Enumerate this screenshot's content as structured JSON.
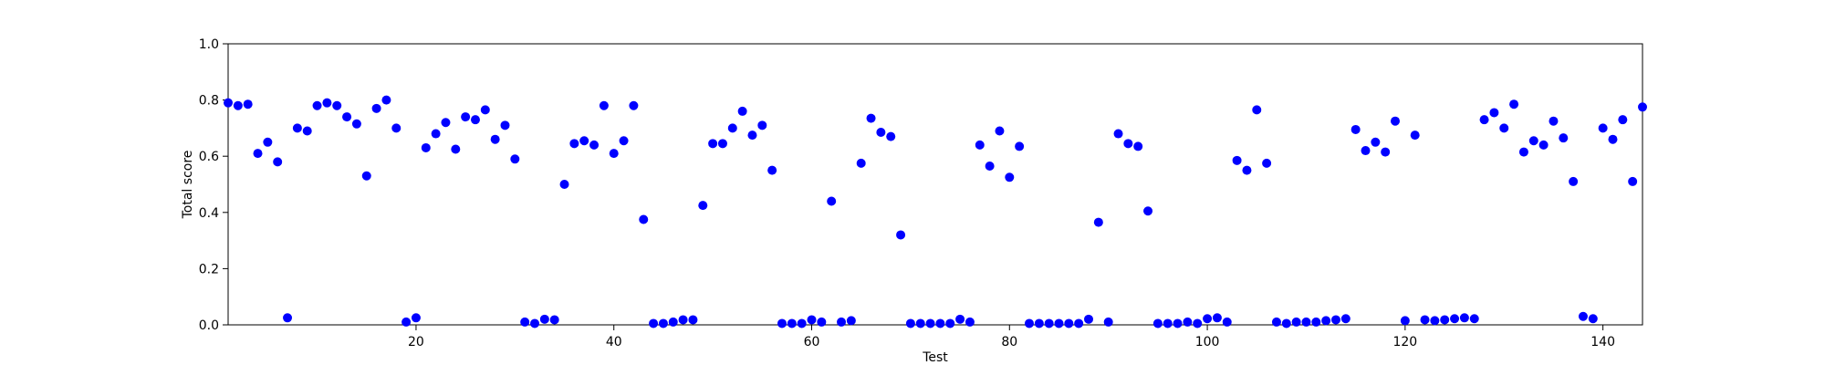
{
  "chart_data": {
    "type": "scatter",
    "title": "",
    "xlabel": "Test",
    "ylabel": "Total score",
    "xlim": [
      1,
      144
    ],
    "ylim": [
      0,
      1
    ],
    "x_ticks": [
      20,
      40,
      60,
      80,
      100,
      120,
      140
    ],
    "y_ticks": [
      0.0,
      0.2,
      0.4,
      0.6,
      0.8,
      1.0
    ],
    "y_tick_labels": [
      "0.0",
      "0.2",
      "0.4",
      "0.6",
      "0.8",
      "1.0"
    ],
    "grid": false,
    "marker_color": "#0000ff",
    "series": [
      {
        "x": [
          1,
          2,
          3,
          4,
          5,
          6,
          7,
          8,
          9,
          10,
          11,
          12,
          13,
          14,
          15,
          16,
          17,
          18,
          19,
          20,
          21,
          22,
          23,
          24,
          25,
          26,
          27,
          28,
          29,
          30,
          31,
          32,
          33,
          34,
          35,
          36,
          37,
          38,
          39,
          40,
          41,
          42,
          43,
          44,
          45,
          46,
          47,
          48,
          49,
          50,
          51,
          52,
          53,
          54,
          55,
          56,
          57,
          58,
          59,
          60,
          61,
          62,
          63,
          64,
          65,
          66,
          67,
          68,
          69,
          70,
          71,
          72,
          73,
          74,
          75,
          76,
          77,
          78,
          79,
          80,
          81,
          82,
          83,
          84,
          85,
          86,
          87,
          88,
          89,
          90,
          91,
          92,
          93,
          94,
          95,
          96,
          97,
          98,
          99,
          100,
          101,
          102,
          103,
          104,
          105,
          106,
          107,
          108,
          109,
          110,
          111,
          112,
          113,
          114,
          115,
          116,
          117,
          118,
          119,
          120,
          121,
          122,
          123,
          124,
          125,
          126,
          127,
          128,
          129,
          130,
          131,
          132,
          133,
          134,
          135,
          136,
          137,
          138,
          139,
          140,
          141,
          142,
          143,
          144
        ],
        "y": [
          0.79,
          0.78,
          0.785,
          0.61,
          0.65,
          0.58,
          0.025,
          0.7,
          0.69,
          0.78,
          0.79,
          0.78,
          0.74,
          0.715,
          0.53,
          0.77,
          0.8,
          0.7,
          0.01,
          0.025,
          0.63,
          0.68,
          0.72,
          0.625,
          0.74,
          0.73,
          0.765,
          0.66,
          0.71,
          0.59,
          0.01,
          0.005,
          0.02,
          0.018,
          0.5,
          0.645,
          0.655,
          0.64,
          0.78,
          0.61,
          0.655,
          0.78,
          0.375,
          0.005,
          0.005,
          0.01,
          0.018,
          0.018,
          0.425,
          0.645,
          0.645,
          0.7,
          0.76,
          0.675,
          0.71,
          0.55,
          0.005,
          0.005,
          0.005,
          0.018,
          0.01,
          0.44,
          0.01,
          0.015,
          0.575,
          0.735,
          0.685,
          0.67,
          0.32,
          0.005,
          0.005,
          0.005,
          0.005,
          0.005,
          0.02,
          0.01,
          0.64,
          0.565,
          0.69,
          0.525,
          0.635,
          0.005,
          0.005,
          0.005,
          0.005,
          0.005,
          0.005,
          0.02,
          0.365,
          0.01,
          0.68,
          0.645,
          0.635,
          0.405,
          0.005,
          0.005,
          0.005,
          0.01,
          0.005,
          0.022,
          0.025,
          0.01,
          0.585,
          0.55,
          0.765,
          0.575,
          0.01,
          0.005,
          0.01,
          0.01,
          0.01,
          0.015,
          0.018,
          0.022,
          0.695,
          0.62,
          0.65,
          0.615,
          0.725,
          0.015,
          0.675,
          0.018,
          0.015,
          0.018,
          0.022,
          0.025,
          0.022,
          0.73,
          0.755,
          0.7,
          0.785,
          0.615,
          0.655,
          0.64,
          0.725,
          0.665,
          0.51,
          0.03,
          0.022,
          0.7,
          0.66,
          0.73,
          0.51,
          0.775
        ]
      }
    ]
  }
}
